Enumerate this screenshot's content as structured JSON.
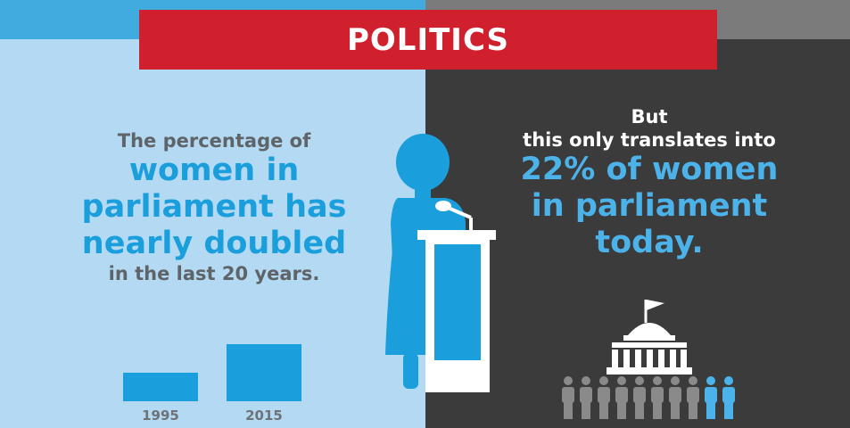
{
  "banner": {
    "title": "POLITICS"
  },
  "left": {
    "line1": "The percentage of",
    "highlight1": "women in",
    "highlight2": "parliament has",
    "highlight3": "nearly doubled",
    "line2": "in the last 20 years."
  },
  "right": {
    "line1": "But",
    "line2": "this only translates into",
    "highlight1": "22% of women",
    "highlight2": "in parliament",
    "highlight3": "today."
  },
  "chart_data": {
    "type": "bar",
    "categories": [
      "1995",
      "2015"
    ],
    "values": [
      11,
      22
    ],
    "title": "",
    "xlabel": "",
    "ylabel": "",
    "ylim": [
      0,
      22
    ]
  },
  "colors": {
    "left_bg": "#b3d9f3",
    "right_bg": "#3b3b3b",
    "banner": "#d0202e",
    "accent_blue": "#1b9edc",
    "person_gray": "#8a8a8a",
    "person_blue": "#4cb3ea"
  },
  "icons": [
    "woman-speaker-icon",
    "podium-icon",
    "microphone-icon",
    "parliament-building-icon",
    "people-crowd-icon"
  ]
}
